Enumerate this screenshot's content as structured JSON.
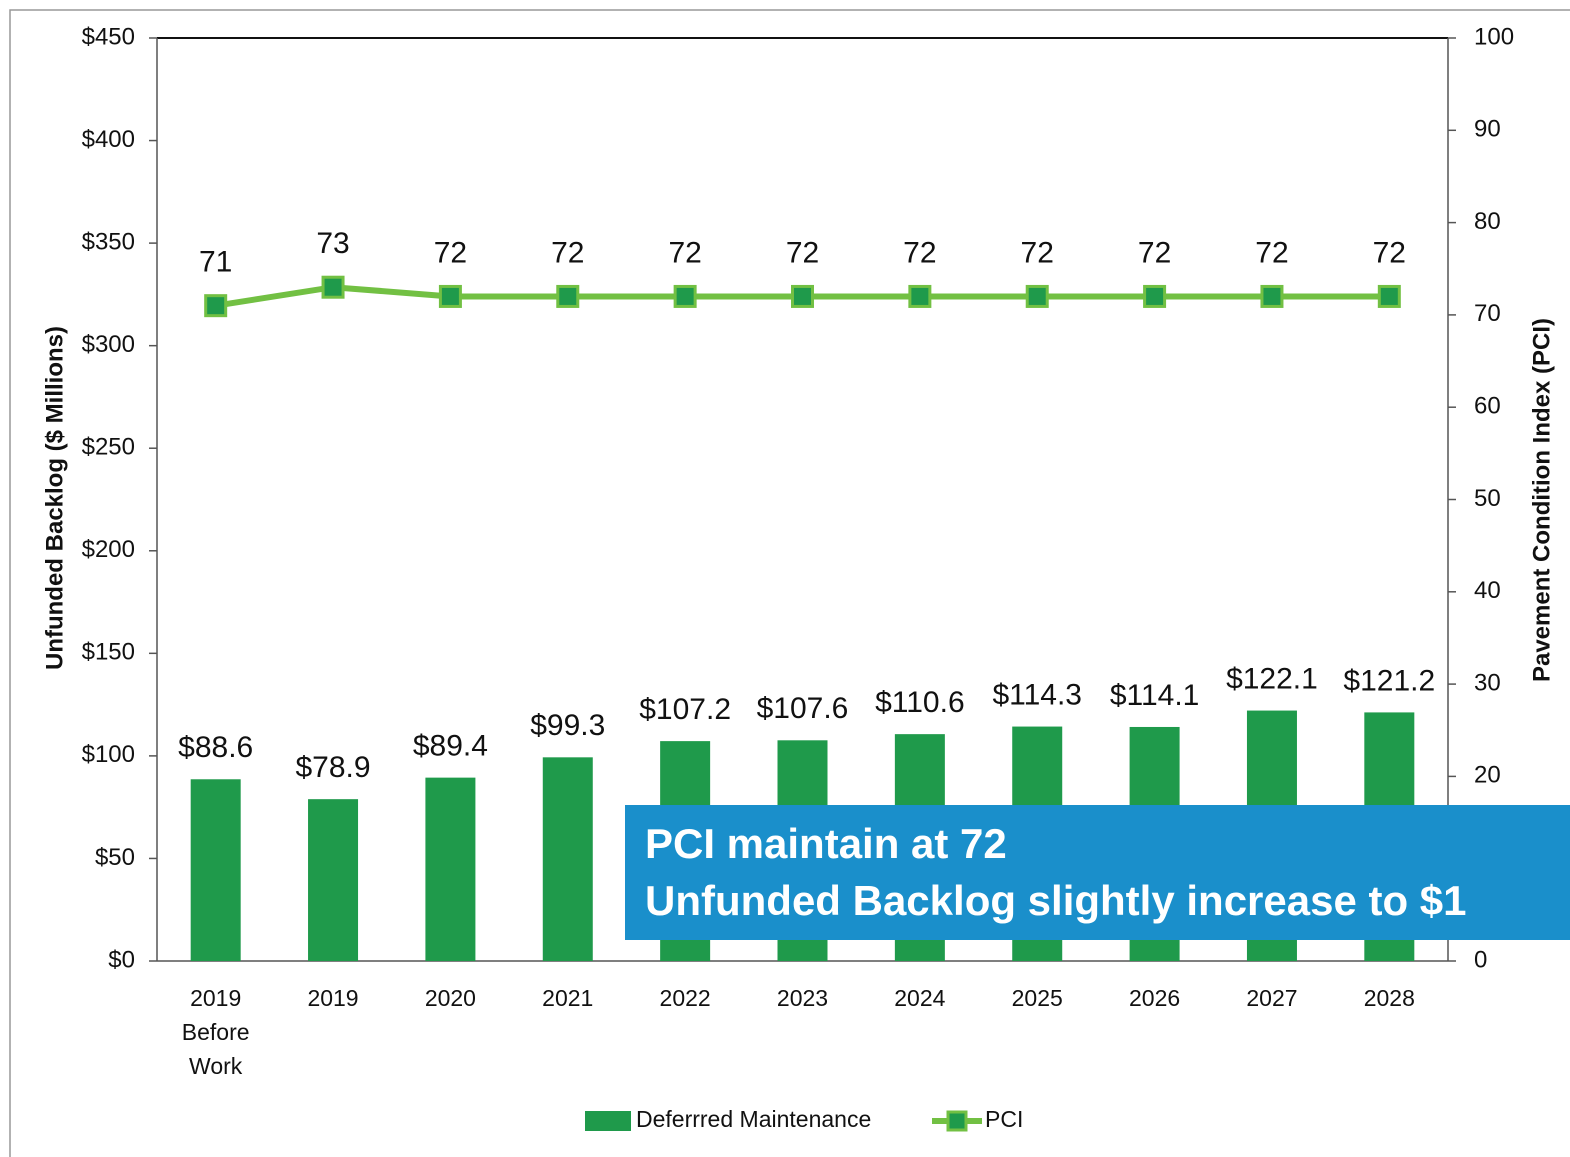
{
  "chart_data": {
    "type": "bar",
    "ylabel": "Unfunded Backlog ($ Millions)",
    "y2label": "Pavement Condition Index (PCI)",
    "categories": [
      "2019 Before Work",
      "2019",
      "2020",
      "2021",
      "2022",
      "2023",
      "2024",
      "2025",
      "2026",
      "2027",
      "2028"
    ],
    "series": [
      {
        "name": "Deferrred Maintenance",
        "color": "#1f9a4b",
        "type": "bar",
        "values": [
          88.6,
          78.9,
          89.4,
          99.3,
          107.2,
          107.6,
          110.6,
          114.3,
          114.1,
          122.1,
          121.2
        ],
        "value_labels": [
          "$88.6",
          "$78.9",
          "$89.4",
          "$99.3",
          "$107.2",
          "$107.6",
          "$110.6",
          "$114.3",
          "$114.1",
          "$122.1",
          "$121.2"
        ]
      },
      {
        "name": "PCI",
        "color": "#72c043",
        "type": "line",
        "axis": "y2",
        "values": [
          71,
          73,
          72,
          72,
          72,
          72,
          72,
          72,
          72,
          72,
          72
        ]
      }
    ],
    "ylim": [
      0,
      450
    ],
    "yticks": [
      {
        "value": 0,
        "label": "$0"
      },
      {
        "value": 50,
        "label": "$50"
      },
      {
        "value": 100,
        "label": "$100"
      },
      {
        "value": 150,
        "label": "$150"
      },
      {
        "value": 200,
        "label": "$200"
      },
      {
        "value": 250,
        "label": "$250"
      },
      {
        "value": 300,
        "label": "$300"
      },
      {
        "value": 350,
        "label": "$350"
      },
      {
        "value": 400,
        "label": "$400"
      },
      {
        "value": 450,
        "label": "$450"
      }
    ],
    "y2lim": [
      0,
      100
    ],
    "y2ticks": [
      0,
      10,
      20,
      30,
      40,
      50,
      60,
      70,
      80,
      90,
      100
    ],
    "annotation": [
      "PCI maintain at 72",
      "Unfunded Backlog slightly increase to $1"
    ]
  }
}
